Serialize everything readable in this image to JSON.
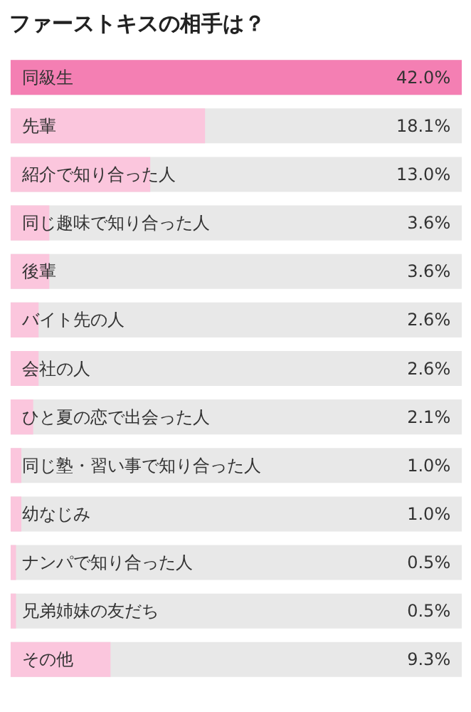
{
  "chart_data": {
    "type": "bar",
    "orientation": "horizontal",
    "title": "ファーストキスの相手は？",
    "categories": [
      "同級生",
      "先輩",
      "紹介で知り合った人",
      "同じ趣味で知り合った人",
      "後輩",
      "バイト先の人",
      "会社の人",
      "ひと夏の恋で出会った人",
      "同じ塾・習い事で知り合った人",
      "幼なじみ",
      "ナンパで知り合った人",
      "兄弟姉妹の友だち",
      "その他"
    ],
    "values": [
      42.0,
      18.1,
      13.0,
      3.6,
      3.6,
      2.6,
      2.6,
      2.1,
      1.0,
      1.0,
      0.5,
      0.5,
      9.3
    ],
    "colors": [
      "#f47fb3",
      "#fbc6dd",
      "#fbc6dd",
      "#fbc6dd",
      "#fbc6dd",
      "#fbc6dd",
      "#fbc6dd",
      "#fbc6dd",
      "#fbc6dd",
      "#fbc6dd",
      "#fbc6dd",
      "#fbc6dd",
      "#fbc6dd"
    ],
    "value_labels": [
      "42.0%",
      "18.1%",
      "13.0%",
      "3.6%",
      "3.6%",
      "2.6%",
      "2.6%",
      "2.1%",
      "1.0%",
      "1.0%",
      "0.5%",
      "0.5%",
      "9.3%"
    ]
  }
}
